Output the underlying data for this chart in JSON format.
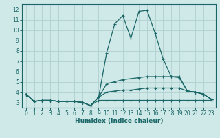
{
  "xlabel": "Humidex (Indice chaleur)",
  "background_color": "#cfe8e8",
  "grid_color": "#b0d0d0",
  "line_color": "#1a6666",
  "xlim": [
    -0.5,
    23.5
  ],
  "ylim": [
    2.5,
    12.5
  ],
  "xticks": [
    0,
    1,
    2,
    3,
    4,
    5,
    6,
    7,
    8,
    9,
    10,
    11,
    12,
    13,
    14,
    15,
    16,
    17,
    18,
    19,
    20,
    21,
    22,
    23
  ],
  "yticks": [
    3,
    4,
    5,
    6,
    7,
    8,
    9,
    10,
    11,
    12
  ],
  "line1_y": [
    3.8,
    3.1,
    3.2,
    3.2,
    3.1,
    3.1,
    3.1,
    3.0,
    2.7,
    3.5,
    7.8,
    10.6,
    11.4,
    9.2,
    11.8,
    11.9,
    9.7,
    7.2,
    5.5,
    5.4,
    4.1,
    4.0,
    3.8,
    3.3
  ],
  "line2_y": [
    3.8,
    3.1,
    3.2,
    3.2,
    3.1,
    3.1,
    3.1,
    3.0,
    2.7,
    3.5,
    4.8,
    5.0,
    5.2,
    5.3,
    5.4,
    5.5,
    5.5,
    5.5,
    5.5,
    5.5,
    4.1,
    4.0,
    3.8,
    3.3
  ],
  "line3_y": [
    3.8,
    3.1,
    3.2,
    3.2,
    3.1,
    3.1,
    3.1,
    3.0,
    2.7,
    3.5,
    4.0,
    4.1,
    4.2,
    4.2,
    4.3,
    4.4,
    4.4,
    4.4,
    4.4,
    4.4,
    4.1,
    4.0,
    3.8,
    3.3
  ],
  "line4_y": [
    3.8,
    3.1,
    3.2,
    3.2,
    3.1,
    3.1,
    3.1,
    3.0,
    2.7,
    3.2,
    3.2,
    3.2,
    3.2,
    3.2,
    3.2,
    3.2,
    3.2,
    3.2,
    3.2,
    3.2,
    3.2,
    3.2,
    3.2,
    3.2
  ]
}
